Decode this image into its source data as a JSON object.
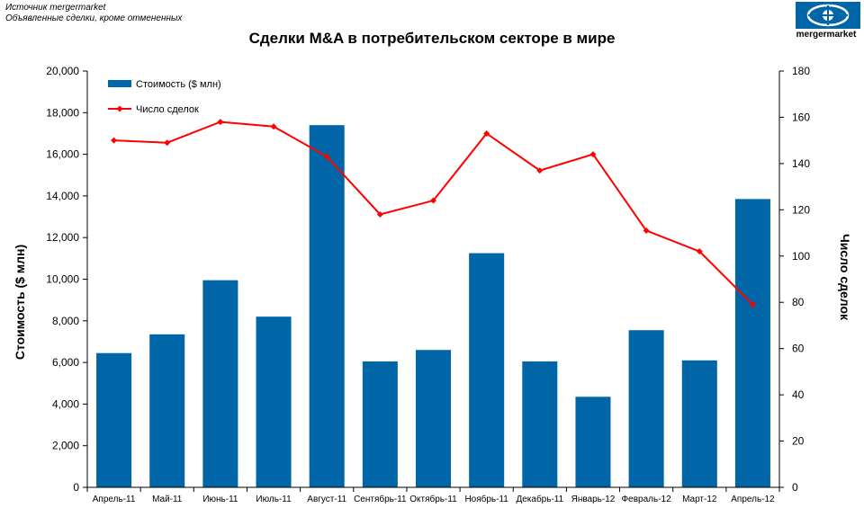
{
  "header": {
    "source_line1": "Источник mergermarket",
    "source_line2": "Объявленные сделки, кроме отмененных",
    "logo_text": "mergermarket"
  },
  "chart_data": {
    "type": "bar",
    "title": "Сделки M&A в потребительском секторе в мире",
    "categories": [
      "Апрель-11",
      "Май-11",
      "Июнь-11",
      "Июль-11",
      "Август-11",
      "Сентябрь-11",
      "Октябрь-11",
      "Ноябрь-11",
      "Декабрь-11",
      "Январь-12",
      "Февраль-12",
      "Март-12",
      "Апрель-12"
    ],
    "series": [
      {
        "name": "Стоимость ($ млн)",
        "type": "bar",
        "axis": "left",
        "color": "#0066a8",
        "values": [
          6450,
          7350,
          9950,
          8200,
          17400,
          6050,
          6600,
          11250,
          6050,
          4350,
          7550,
          6100,
          13850
        ]
      },
      {
        "name": "Число сделок",
        "type": "line",
        "axis": "right",
        "color": "#ff0000",
        "values": [
          150,
          149,
          158,
          156,
          143,
          118,
          124,
          153,
          137,
          144,
          111,
          102,
          79
        ]
      }
    ],
    "ylabel": "Стоимость  ($ млн)",
    "y2label": "Число сделок",
    "ylim": [
      0,
      20000
    ],
    "y2lim": [
      0,
      180
    ],
    "yticks": [
      "0",
      "2,000",
      "4,000",
      "6,000",
      "8,000",
      "10,000",
      "12,000",
      "14,000",
      "16,000",
      "18,000",
      "20,000"
    ],
    "y2ticks": [
      "0",
      "20",
      "40",
      "60",
      "80",
      "100",
      "120",
      "140",
      "160",
      "180"
    ],
    "legend": "top-left",
    "grid": false
  }
}
